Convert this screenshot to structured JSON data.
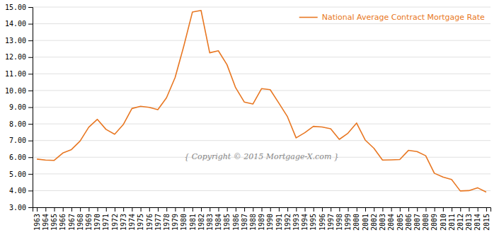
{
  "chart_data": {
    "type": "line",
    "x": [
      1963,
      1964,
      1965,
      1966,
      1967,
      1968,
      1969,
      1970,
      1971,
      1972,
      1973,
      1974,
      1975,
      1976,
      1977,
      1978,
      1979,
      1980,
      1981,
      1982,
      1983,
      1984,
      1985,
      1986,
      1987,
      1988,
      1989,
      1990,
      1991,
      1992,
      1993,
      1994,
      1995,
      1996,
      1997,
      1998,
      1999,
      2000,
      2001,
      2002,
      2003,
      2004,
      2005,
      2006,
      2007,
      2008,
      2009,
      2010,
      2011,
      2012,
      2013,
      2014,
      2015
    ],
    "series": [
      {
        "name": "National Average Contract Mortgage Rate",
        "color": "#E87722",
        "values": [
          5.89,
          5.83,
          5.81,
          6.25,
          6.46,
          6.97,
          7.8,
          8.27,
          7.67,
          7.38,
          7.96,
          8.92,
          9.05,
          8.99,
          8.85,
          9.56,
          10.78,
          12.66,
          14.7,
          14.8,
          12.26,
          12.38,
          11.55,
          10.17,
          9.31,
          9.19,
          10.11,
          10.05,
          9.25,
          8.43,
          7.16,
          7.47,
          7.85,
          7.81,
          7.71,
          7.07,
          7.44,
          8.05,
          7.03,
          6.54,
          5.83,
          5.84,
          5.86,
          6.41,
          6.34,
          6.09,
          5.04,
          4.81,
          4.66,
          3.98,
          4.0,
          4.17,
          3.91
        ]
      }
    ],
    "xlim": [
      1962.5,
      2015.5
    ],
    "xticks": [
      1963,
      1964,
      1965,
      1966,
      1967,
      1968,
      1969,
      1970,
      1971,
      1972,
      1973,
      1974,
      1975,
      1976,
      1977,
      1978,
      1979,
      1980,
      1981,
      1982,
      1983,
      1984,
      1985,
      1986,
      1987,
      1988,
      1989,
      1990,
      1991,
      1992,
      1993,
      1994,
      1995,
      1996,
      1997,
      1998,
      1999,
      2000,
      2001,
      2002,
      2003,
      2004,
      2005,
      2006,
      2007,
      2008,
      2009,
      2010,
      2011,
      2012,
      2013,
      2014,
      2015
    ],
    "ylim": [
      3.0,
      15.0
    ],
    "yticks": [
      {
        "value": 3.0,
        "label": "3.00"
      },
      {
        "value": 4.0,
        "label": "4.00"
      },
      {
        "value": 5.0,
        "label": "5.00"
      },
      {
        "value": 6.0,
        "label": "6.00"
      },
      {
        "value": 7.0,
        "label": "7.00"
      },
      {
        "value": 8.0,
        "label": "8.00"
      },
      {
        "value": 9.0,
        "label": "9.00"
      },
      {
        "value": 10.0,
        "label": "10.00"
      },
      {
        "value": 11.0,
        "label": "11.00"
      },
      {
        "value": 12.0,
        "label": "12.00"
      },
      {
        "value": 13.0,
        "label": "13.00"
      },
      {
        "value": 14.0,
        "label": "14.00"
      },
      {
        "value": 15.0,
        "label": "15.00"
      }
    ],
    "grid": "y",
    "legend": "upper right",
    "annotations": [
      "{ Copyright © 2015 Mortgage-X.com }"
    ]
  }
}
